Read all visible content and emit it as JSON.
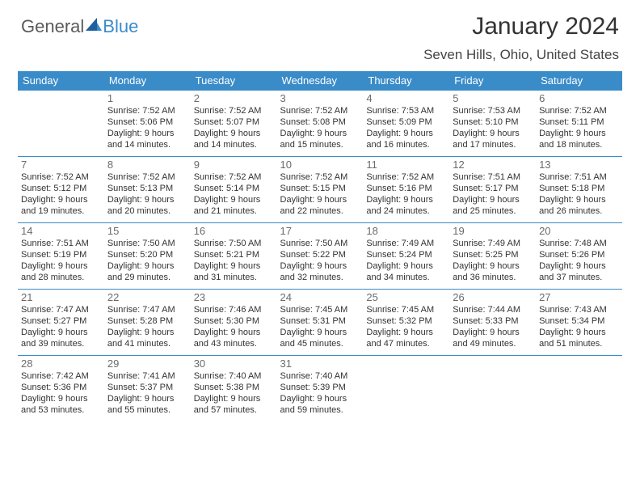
{
  "brand": {
    "part1": "General",
    "part2": "Blue"
  },
  "title": "January 2024",
  "location": "Seven Hills, Ohio, United States",
  "colors": {
    "header_bg": "#3a8cc9",
    "header_text": "#ffffff",
    "body_text": "#333333",
    "daynum": "#6b6b6b",
    "rule": "#3a8cc9",
    "brand_gray": "#5a5a5a",
    "brand_blue": "#3a8cc9",
    "page_bg": "#ffffff"
  },
  "typography": {
    "title_fontsize": 30,
    "location_fontsize": 17,
    "dayheader_fontsize": 13,
    "daynum_fontsize": 13,
    "cell_fontsize": 11
  },
  "days": [
    "Sunday",
    "Monday",
    "Tuesday",
    "Wednesday",
    "Thursday",
    "Friday",
    "Saturday"
  ],
  "weeks": [
    [
      null,
      {
        "n": "1",
        "sr": "Sunrise: 7:52 AM",
        "ss": "Sunset: 5:06 PM",
        "d1": "Daylight: 9 hours",
        "d2": "and 14 minutes."
      },
      {
        "n": "2",
        "sr": "Sunrise: 7:52 AM",
        "ss": "Sunset: 5:07 PM",
        "d1": "Daylight: 9 hours",
        "d2": "and 14 minutes."
      },
      {
        "n": "3",
        "sr": "Sunrise: 7:52 AM",
        "ss": "Sunset: 5:08 PM",
        "d1": "Daylight: 9 hours",
        "d2": "and 15 minutes."
      },
      {
        "n": "4",
        "sr": "Sunrise: 7:53 AM",
        "ss": "Sunset: 5:09 PM",
        "d1": "Daylight: 9 hours",
        "d2": "and 16 minutes."
      },
      {
        "n": "5",
        "sr": "Sunrise: 7:53 AM",
        "ss": "Sunset: 5:10 PM",
        "d1": "Daylight: 9 hours",
        "d2": "and 17 minutes."
      },
      {
        "n": "6",
        "sr": "Sunrise: 7:52 AM",
        "ss": "Sunset: 5:11 PM",
        "d1": "Daylight: 9 hours",
        "d2": "and 18 minutes."
      }
    ],
    [
      {
        "n": "7",
        "sr": "Sunrise: 7:52 AM",
        "ss": "Sunset: 5:12 PM",
        "d1": "Daylight: 9 hours",
        "d2": "and 19 minutes."
      },
      {
        "n": "8",
        "sr": "Sunrise: 7:52 AM",
        "ss": "Sunset: 5:13 PM",
        "d1": "Daylight: 9 hours",
        "d2": "and 20 minutes."
      },
      {
        "n": "9",
        "sr": "Sunrise: 7:52 AM",
        "ss": "Sunset: 5:14 PM",
        "d1": "Daylight: 9 hours",
        "d2": "and 21 minutes."
      },
      {
        "n": "10",
        "sr": "Sunrise: 7:52 AM",
        "ss": "Sunset: 5:15 PM",
        "d1": "Daylight: 9 hours",
        "d2": "and 22 minutes."
      },
      {
        "n": "11",
        "sr": "Sunrise: 7:52 AM",
        "ss": "Sunset: 5:16 PM",
        "d1": "Daylight: 9 hours",
        "d2": "and 24 minutes."
      },
      {
        "n": "12",
        "sr": "Sunrise: 7:51 AM",
        "ss": "Sunset: 5:17 PM",
        "d1": "Daylight: 9 hours",
        "d2": "and 25 minutes."
      },
      {
        "n": "13",
        "sr": "Sunrise: 7:51 AM",
        "ss": "Sunset: 5:18 PM",
        "d1": "Daylight: 9 hours",
        "d2": "and 26 minutes."
      }
    ],
    [
      {
        "n": "14",
        "sr": "Sunrise: 7:51 AM",
        "ss": "Sunset: 5:19 PM",
        "d1": "Daylight: 9 hours",
        "d2": "and 28 minutes."
      },
      {
        "n": "15",
        "sr": "Sunrise: 7:50 AM",
        "ss": "Sunset: 5:20 PM",
        "d1": "Daylight: 9 hours",
        "d2": "and 29 minutes."
      },
      {
        "n": "16",
        "sr": "Sunrise: 7:50 AM",
        "ss": "Sunset: 5:21 PM",
        "d1": "Daylight: 9 hours",
        "d2": "and 31 minutes."
      },
      {
        "n": "17",
        "sr": "Sunrise: 7:50 AM",
        "ss": "Sunset: 5:22 PM",
        "d1": "Daylight: 9 hours",
        "d2": "and 32 minutes."
      },
      {
        "n": "18",
        "sr": "Sunrise: 7:49 AM",
        "ss": "Sunset: 5:24 PM",
        "d1": "Daylight: 9 hours",
        "d2": "and 34 minutes."
      },
      {
        "n": "19",
        "sr": "Sunrise: 7:49 AM",
        "ss": "Sunset: 5:25 PM",
        "d1": "Daylight: 9 hours",
        "d2": "and 36 minutes."
      },
      {
        "n": "20",
        "sr": "Sunrise: 7:48 AM",
        "ss": "Sunset: 5:26 PM",
        "d1": "Daylight: 9 hours",
        "d2": "and 37 minutes."
      }
    ],
    [
      {
        "n": "21",
        "sr": "Sunrise: 7:47 AM",
        "ss": "Sunset: 5:27 PM",
        "d1": "Daylight: 9 hours",
        "d2": "and 39 minutes."
      },
      {
        "n": "22",
        "sr": "Sunrise: 7:47 AM",
        "ss": "Sunset: 5:28 PM",
        "d1": "Daylight: 9 hours",
        "d2": "and 41 minutes."
      },
      {
        "n": "23",
        "sr": "Sunrise: 7:46 AM",
        "ss": "Sunset: 5:30 PM",
        "d1": "Daylight: 9 hours",
        "d2": "and 43 minutes."
      },
      {
        "n": "24",
        "sr": "Sunrise: 7:45 AM",
        "ss": "Sunset: 5:31 PM",
        "d1": "Daylight: 9 hours",
        "d2": "and 45 minutes."
      },
      {
        "n": "25",
        "sr": "Sunrise: 7:45 AM",
        "ss": "Sunset: 5:32 PM",
        "d1": "Daylight: 9 hours",
        "d2": "and 47 minutes."
      },
      {
        "n": "26",
        "sr": "Sunrise: 7:44 AM",
        "ss": "Sunset: 5:33 PM",
        "d1": "Daylight: 9 hours",
        "d2": "and 49 minutes."
      },
      {
        "n": "27",
        "sr": "Sunrise: 7:43 AM",
        "ss": "Sunset: 5:34 PM",
        "d1": "Daylight: 9 hours",
        "d2": "and 51 minutes."
      }
    ],
    [
      {
        "n": "28",
        "sr": "Sunrise: 7:42 AM",
        "ss": "Sunset: 5:36 PM",
        "d1": "Daylight: 9 hours",
        "d2": "and 53 minutes."
      },
      {
        "n": "29",
        "sr": "Sunrise: 7:41 AM",
        "ss": "Sunset: 5:37 PM",
        "d1": "Daylight: 9 hours",
        "d2": "and 55 minutes."
      },
      {
        "n": "30",
        "sr": "Sunrise: 7:40 AM",
        "ss": "Sunset: 5:38 PM",
        "d1": "Daylight: 9 hours",
        "d2": "and 57 minutes."
      },
      {
        "n": "31",
        "sr": "Sunrise: 7:40 AM",
        "ss": "Sunset: 5:39 PM",
        "d1": "Daylight: 9 hours",
        "d2": "and 59 minutes."
      },
      null,
      null,
      null
    ]
  ]
}
